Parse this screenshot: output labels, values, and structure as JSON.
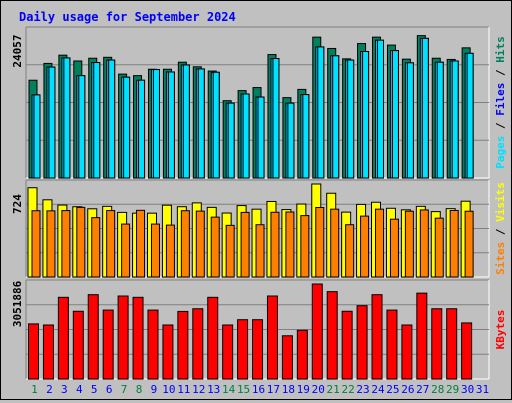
{
  "title": "Daily usage for September 2024",
  "colors": {
    "background": "#c0c0c0",
    "panel": "#c0c0c0",
    "gridline": "#808080",
    "title": "#0000ff",
    "hits": "#00805c",
    "files": "#00c0ff",
    "pages": "#00e0ff",
    "visits": "#ffff00",
    "sites": "#ff8000",
    "kbytes": "#ff0000",
    "weekend": "#008040",
    "weekday": "#0000ff"
  },
  "chart_data": {
    "type": "bar",
    "x": [
      "1",
      "2",
      "3",
      "4",
      "5",
      "6",
      "7",
      "8",
      "9",
      "10",
      "11",
      "12",
      "13",
      "14",
      "15",
      "16",
      "17",
      "18",
      "19",
      "20",
      "21",
      "22",
      "23",
      "24",
      "25",
      "26",
      "27",
      "28",
      "29",
      "30",
      "31"
    ],
    "weekend_days": [
      "1",
      "7",
      "8",
      "14",
      "15",
      "21",
      "22",
      "28",
      "29"
    ],
    "panels": [
      {
        "name": "hits-files-pages",
        "max_label": "24057",
        "ymax": 24057,
        "right_labels": [
          {
            "text": "Hits",
            "color": "#00805c"
          },
          {
            "text": "Files",
            "color": "#0000ff"
          },
          {
            "text": "Pages",
            "color": "#00e0ff"
          }
        ],
        "series": [
          {
            "name": "Hits",
            "color": "#00805c",
            "values": [
              16000,
              18750,
              20100,
              19150,
              19600,
              19750,
              17000,
              16750,
              17800,
              17800,
              18950,
              18200,
              17500,
              12650,
              14300,
              14800,
              20200,
              13150,
              14500,
              23050,
              21200,
              19500,
              22000,
              23050,
              21750,
              19450,
              23300,
              19600,
              19400,
              21300,
              null
            ]
          },
          {
            "name": "Files",
            "color": "#00c0ff",
            "values": [
              13600,
              18150,
              19650,
              16750,
              18900,
              19300,
              16500,
              16000,
              17750,
              17350,
              18500,
              17850,
              17300,
              12250,
              13750,
              13250,
              19550,
              12250,
              13650,
              21450,
              20000,
              19300,
              20700,
              22550,
              20850,
              18850,
              22850,
              18950,
              19150,
              20400,
              null
            ]
          },
          {
            "name": "Pages",
            "color": "#00e0ff",
            "values": [
              13600,
              18150,
              19650,
              16750,
              18900,
              19300,
              16500,
              16000,
              17750,
              17350,
              18500,
              17850,
              17300,
              12250,
              13750,
              13250,
              19550,
              12250,
              13650,
              21450,
              20000,
              19300,
              20700,
              22550,
              20850,
              18850,
              22850,
              18950,
              19150,
              20400,
              null
            ]
          }
        ]
      },
      {
        "name": "visits-sites",
        "max_label": "724",
        "ymax": 724,
        "right_labels": [
          {
            "text": "Visits",
            "color": "#ffff00"
          },
          {
            "text": "Sites",
            "color": "#ff8000"
          }
        ],
        "series": [
          {
            "name": "Visits",
            "color": "#ffff00",
            "values": [
              695,
              601,
              560,
              547,
              531,
              550,
              503,
              497,
              497,
              559,
              547,
              577,
              542,
              498,
              556,
              528,
              588,
              525,
              568,
              724,
              652,
              505,
              565,
              582,
              535,
              523,
              550,
              509,
              532,
              590,
              null
            ]
          },
          {
            "name": "Sites",
            "color": "#ff8000",
            "values": [
              516,
              515,
              517,
              542,
              462,
              517,
              412,
              519,
              412,
              404,
              516,
              513,
              466,
              402,
              503,
              407,
              504,
              506,
              478,
              541,
              528,
              407,
              474,
              528,
              450,
              512,
              522,
              458,
              518,
              512,
              null
            ]
          }
        ]
      },
      {
        "name": "kbytes",
        "max_label": "3051886",
        "ymax": 3051886,
        "right_labels": [
          {
            "text": "KBytes",
            "color": "#ff0000"
          }
        ],
        "series": [
          {
            "name": "KBytes",
            "color": "#ff0000",
            "values": [
              1770000,
              1735000,
              2624000,
              2176000,
              2709000,
              2214000,
              2666000,
              2624000,
              2214000,
              1735000,
              2171000,
              2257000,
              2624000,
              1735000,
              1905000,
              1905000,
              2666000,
              1389000,
              1565000,
              3051886,
              2806000,
              2176000,
              2355000,
              2709000,
              2214000,
              1735000,
              2758000,
              2257000,
              2257000,
              1802000,
              null
            ]
          }
        ]
      }
    ]
  }
}
